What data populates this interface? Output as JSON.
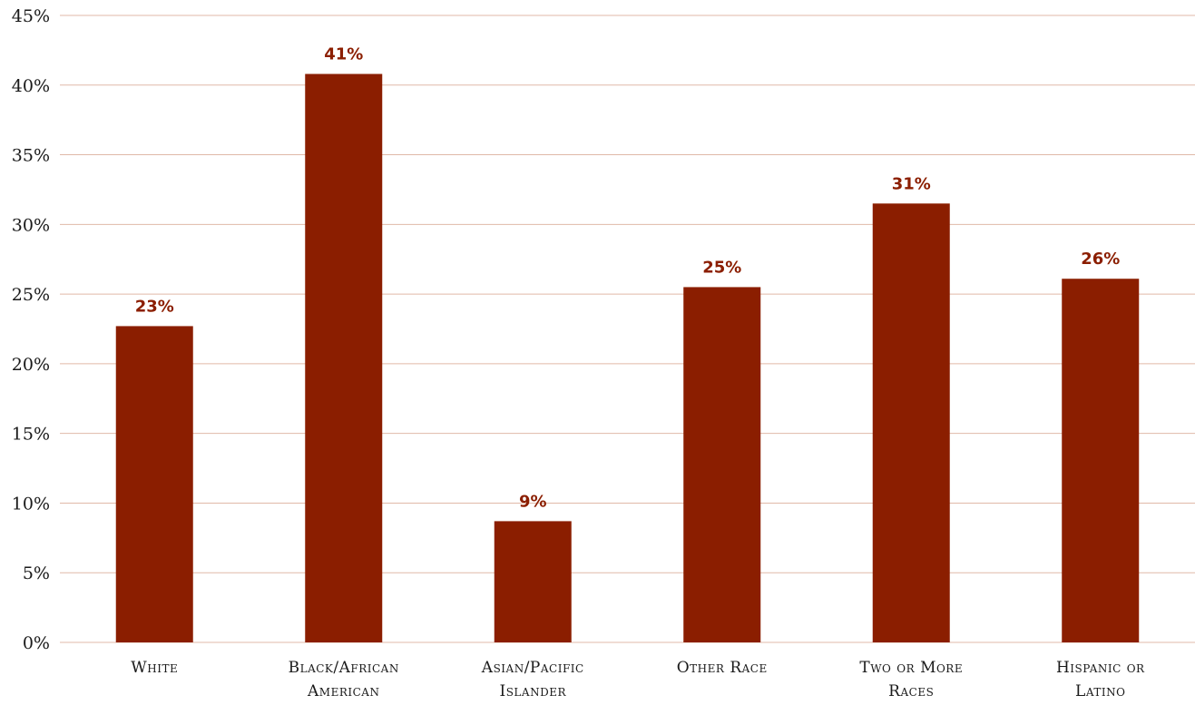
{
  "chart_data": {
    "type": "bar",
    "categories": [
      [
        "White"
      ],
      [
        "Black/African",
        "American"
      ],
      [
        "Asian/Pacific",
        "Islander"
      ],
      [
        "Other Race"
      ],
      [
        "Two or More",
        "Races"
      ],
      [
        "Hispanic or",
        "Latino"
      ]
    ],
    "values": [
      22.7,
      40.8,
      8.7,
      25.5,
      31.5,
      26.1
    ],
    "data_labels": [
      "23%",
      "41%",
      "9%",
      "25%",
      "31%",
      "26%"
    ],
    "ylim": [
      0,
      45
    ],
    "yticks": [
      0,
      5,
      10,
      15,
      20,
      25,
      30,
      35,
      40,
      45
    ],
    "ytick_labels": [
      "0%",
      "5%",
      "10%",
      "15%",
      "20%",
      "25%",
      "30%",
      "35%",
      "40%",
      "45%"
    ],
    "grid": true,
    "colors": {
      "bar": "#8B1E00",
      "grid": "#E0B9A8",
      "label": "#8B1E00"
    }
  }
}
